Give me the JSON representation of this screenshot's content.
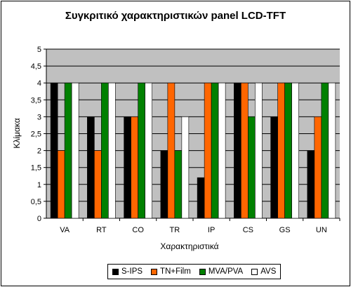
{
  "chart_data": {
    "type": "bar",
    "title": "Συγκριτικό χαρακτηριστικών panel LCD-TFT",
    "xlabel": "Χαρακτηριστικά",
    "ylabel": "Κλίμακα",
    "ylim": [
      0,
      5
    ],
    "yticks": [
      "0",
      "0,5",
      "1",
      "1,5",
      "2",
      "2,5",
      "3",
      "3,5",
      "4",
      "4,5",
      "5"
    ],
    "categories": [
      "VA",
      "RT",
      "CO",
      "TR",
      "IP",
      "CS",
      "GS",
      "UN"
    ],
    "series": [
      {
        "name": "S-IPS",
        "color": "#000000",
        "values": [
          4,
          3,
          3,
          2,
          1.2,
          4,
          3,
          2
        ]
      },
      {
        "name": "TN+Film",
        "color": "#ff6600",
        "values": [
          2,
          2,
          3,
          4,
          4,
          4,
          4,
          3
        ]
      },
      {
        "name": "MVA/PVA",
        "color": "#008000",
        "values": [
          4,
          4,
          4,
          2,
          4,
          3,
          4,
          4
        ]
      },
      {
        "name": "AVS",
        "color": "#ffffff",
        "values": [
          4,
          4,
          4,
          3,
          4,
          4,
          4,
          4
        ]
      }
    ],
    "grid": true,
    "legend": "bottom"
  }
}
